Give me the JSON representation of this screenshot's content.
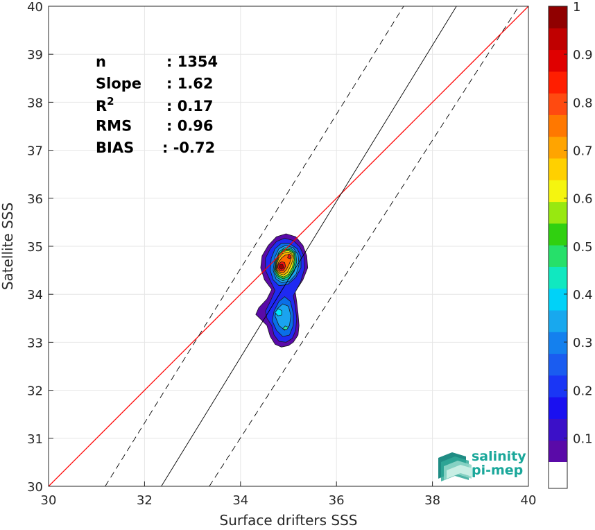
{
  "chart_data": {
    "type": "scatter",
    "subtype": "density-contour",
    "xlabel": "Surface drifters SSS",
    "ylabel": "Satellite SSS",
    "xlim": [
      30,
      40
    ],
    "ylim": [
      30,
      40
    ],
    "xticks": [
      30,
      32,
      34,
      36,
      38,
      40
    ],
    "yticks": [
      30,
      31,
      32,
      33,
      34,
      35,
      36,
      37,
      38,
      39,
      40
    ],
    "grid": true,
    "stats": [
      {
        "label": "n",
        "sep": ":",
        "value": "1354"
      },
      {
        "label": "Slope",
        "sep": ":",
        "value": "1.62"
      },
      {
        "label": "R",
        "sup": "2",
        "sep": ":",
        "value": "0.17"
      },
      {
        "label": "RMS",
        "sep": ":",
        "value": "0.96"
      },
      {
        "label": "BIAS",
        "sep": ":",
        "value": "-0.72"
      }
    ],
    "reference_lines": [
      {
        "kind": "one-to-one",
        "color": "#ff0000",
        "points": [
          [
            30,
            30
          ],
          [
            40,
            40
          ]
        ]
      },
      {
        "kind": "fit",
        "color": "#000000",
        "dash": "solid",
        "points": [
          [
            32.35,
            30
          ],
          [
            38.5,
            40
          ]
        ]
      },
      {
        "kind": "fit-upper",
        "color": "#000000",
        "dash": "dashed",
        "points": [
          [
            31.18,
            30
          ],
          [
            37.4,
            40
          ]
        ]
      },
      {
        "kind": "fit-lower",
        "color": "#000000",
        "dash": "dashed",
        "points": [
          [
            33.35,
            30
          ],
          [
            39.8,
            40
          ]
        ]
      }
    ],
    "density_contours": [
      {
        "level": 0.05,
        "color": "#5a0aa8",
        "points": [
          [
            34.42,
            33.48
          ],
          [
            34.55,
            33.35
          ],
          [
            34.62,
            33.12
          ],
          [
            34.72,
            32.96
          ],
          [
            34.85,
            32.9
          ],
          [
            35.0,
            32.93
          ],
          [
            35.1,
            33.0
          ],
          [
            35.2,
            33.15
          ],
          [
            35.22,
            33.35
          ],
          [
            35.2,
            33.6
          ],
          [
            35.17,
            33.85
          ],
          [
            35.14,
            34.05
          ],
          [
            35.3,
            34.3
          ],
          [
            35.4,
            34.55
          ],
          [
            35.38,
            34.8
          ],
          [
            35.3,
            35.02
          ],
          [
            35.15,
            35.2
          ],
          [
            34.95,
            35.26
          ],
          [
            34.75,
            35.2
          ],
          [
            34.58,
            35.02
          ],
          [
            34.45,
            34.8
          ],
          [
            34.42,
            34.55
          ],
          [
            34.5,
            34.3
          ],
          [
            34.65,
            34.1
          ],
          [
            34.55,
            33.9
          ],
          [
            34.38,
            33.72
          ],
          [
            34.32,
            33.58
          ]
        ]
      },
      {
        "level": 0.15,
        "color": "#1f2af2",
        "points": [
          [
            34.55,
            33.5
          ],
          [
            34.65,
            33.35
          ],
          [
            34.7,
            33.15
          ],
          [
            34.8,
            33.02
          ],
          [
            34.95,
            33.0
          ],
          [
            35.08,
            33.08
          ],
          [
            35.15,
            33.25
          ],
          [
            35.17,
            33.5
          ],
          [
            35.14,
            33.75
          ],
          [
            35.1,
            33.97
          ],
          [
            35.25,
            34.25
          ],
          [
            35.34,
            34.55
          ],
          [
            35.32,
            34.8
          ],
          [
            35.24,
            34.98
          ],
          [
            35.1,
            35.12
          ],
          [
            34.92,
            35.17
          ],
          [
            34.75,
            35.1
          ],
          [
            34.62,
            34.95
          ],
          [
            34.52,
            34.75
          ],
          [
            34.52,
            34.5
          ],
          [
            34.62,
            34.28
          ],
          [
            34.72,
            34.08
          ],
          [
            34.62,
            33.85
          ],
          [
            34.52,
            33.65
          ]
        ]
      },
      {
        "level": 0.25,
        "color": "#0a6fe8",
        "points": [
          [
            34.66,
            33.45
          ],
          [
            34.75,
            33.25
          ],
          [
            34.88,
            33.12
          ],
          [
            35.02,
            33.15
          ],
          [
            35.1,
            33.35
          ],
          [
            35.1,
            33.6
          ],
          [
            35.04,
            33.85
          ],
          [
            34.92,
            33.95
          ],
          [
            34.8,
            33.85
          ],
          [
            34.7,
            33.65
          ]
        ]
      },
      {
        "level": 0.25,
        "color": "#0a6fe8",
        "points": [
          [
            34.62,
            34.5
          ],
          [
            34.68,
            34.3
          ],
          [
            34.8,
            34.18
          ],
          [
            34.98,
            34.2
          ],
          [
            35.15,
            34.35
          ],
          [
            35.26,
            34.55
          ],
          [
            35.26,
            34.78
          ],
          [
            35.18,
            34.95
          ],
          [
            35.02,
            35.06
          ],
          [
            34.85,
            35.06
          ],
          [
            34.72,
            34.95
          ],
          [
            34.64,
            34.75
          ]
        ]
      },
      {
        "level": 0.35,
        "color": "#1aa3f0",
        "points": [
          [
            34.72,
            33.55
          ],
          [
            34.8,
            33.35
          ],
          [
            34.92,
            33.25
          ],
          [
            35.02,
            33.35
          ],
          [
            35.05,
            33.55
          ],
          [
            35.0,
            33.75
          ],
          [
            34.88,
            33.8
          ],
          [
            34.77,
            33.7
          ]
        ]
      },
      {
        "level": 0.42,
        "color": "#00e5ff",
        "points": [
          [
            34.72,
            33.62
          ],
          [
            34.78,
            33.55
          ],
          [
            34.86,
            33.57
          ],
          [
            34.86,
            33.66
          ],
          [
            34.78,
            33.7
          ]
        ]
      },
      {
        "level": 0.45,
        "color": "#29e8a8",
        "points": [
          [
            34.88,
            33.28
          ],
          [
            34.96,
            33.26
          ],
          [
            35.0,
            33.31
          ],
          [
            34.93,
            33.34
          ]
        ]
      },
      {
        "level": 0.35,
        "color": "#1aa3f0",
        "points": [
          [
            34.68,
            34.5
          ],
          [
            34.74,
            34.32
          ],
          [
            34.86,
            34.24
          ],
          [
            35.02,
            34.27
          ],
          [
            35.16,
            34.42
          ],
          [
            35.22,
            34.62
          ],
          [
            35.2,
            34.82
          ],
          [
            35.1,
            34.97
          ],
          [
            34.94,
            35.02
          ],
          [
            34.8,
            34.95
          ],
          [
            34.72,
            34.78
          ]
        ]
      },
      {
        "level": 0.45,
        "color": "#00d8a0",
        "points": [
          [
            34.7,
            34.5
          ],
          [
            34.76,
            34.35
          ],
          [
            34.88,
            34.28
          ],
          [
            35.02,
            34.33
          ],
          [
            35.12,
            34.48
          ],
          [
            35.17,
            34.68
          ],
          [
            35.15,
            34.86
          ],
          [
            35.05,
            34.96
          ],
          [
            34.92,
            34.97
          ],
          [
            34.8,
            34.88
          ],
          [
            34.73,
            34.7
          ]
        ]
      },
      {
        "level": 0.55,
        "color": "#3fd030",
        "points": [
          [
            34.72,
            34.5
          ],
          [
            34.78,
            34.38
          ],
          [
            34.89,
            34.32
          ],
          [
            35.0,
            34.37
          ],
          [
            35.1,
            34.52
          ],
          [
            35.14,
            34.7
          ],
          [
            35.12,
            34.86
          ],
          [
            35.02,
            34.94
          ],
          [
            34.9,
            34.93
          ],
          [
            34.8,
            34.84
          ],
          [
            34.74,
            34.68
          ]
        ]
      },
      {
        "level": 0.6,
        "color": "#f5f50f",
        "points": [
          [
            34.73,
            34.52
          ],
          [
            34.8,
            34.4
          ],
          [
            34.9,
            34.36
          ],
          [
            35.0,
            34.42
          ],
          [
            35.08,
            34.56
          ],
          [
            35.12,
            34.72
          ],
          [
            35.1,
            34.85
          ],
          [
            35.0,
            34.91
          ],
          [
            34.88,
            34.89
          ],
          [
            34.8,
            34.8
          ],
          [
            34.75,
            34.66
          ]
        ]
      },
      {
        "level": 0.7,
        "color": "#ffb000",
        "points": [
          [
            34.74,
            34.52
          ],
          [
            34.81,
            34.43
          ],
          [
            34.9,
            34.4
          ],
          [
            34.98,
            34.46
          ],
          [
            35.05,
            34.6
          ],
          [
            35.1,
            34.74
          ],
          [
            35.07,
            34.84
          ],
          [
            34.98,
            34.88
          ],
          [
            34.88,
            34.85
          ],
          [
            34.8,
            34.76
          ],
          [
            34.76,
            34.64
          ]
        ]
      },
      {
        "level": 0.8,
        "color": "#ff6a00",
        "points": [
          [
            34.75,
            34.53
          ],
          [
            34.82,
            34.46
          ],
          [
            34.9,
            34.45
          ],
          [
            34.96,
            34.52
          ],
          [
            35.02,
            34.64
          ],
          [
            35.06,
            34.76
          ],
          [
            35.02,
            34.83
          ],
          [
            34.94,
            34.82
          ],
          [
            34.86,
            34.76
          ],
          [
            34.79,
            34.66
          ]
        ]
      },
      {
        "level": 0.9,
        "color": "#f01010",
        "points": [
          [
            34.77,
            34.55
          ],
          [
            34.83,
            34.49
          ],
          [
            34.9,
            34.5
          ],
          [
            34.94,
            34.58
          ],
          [
            34.92,
            34.66
          ],
          [
            34.86,
            34.68
          ],
          [
            34.79,
            34.63
          ]
        ]
      },
      {
        "level": 0.9,
        "color": "#f01010",
        "points": [
          [
            34.98,
            34.76
          ],
          [
            35.03,
            34.74
          ],
          [
            35.06,
            34.8
          ],
          [
            35.01,
            34.84
          ]
        ]
      },
      {
        "level": 1.0,
        "color": "#a00000",
        "points": [
          [
            34.8,
            34.56
          ],
          [
            34.85,
            34.52
          ],
          [
            34.9,
            34.55
          ],
          [
            34.88,
            34.62
          ],
          [
            34.82,
            34.62
          ]
        ]
      }
    ],
    "colorbar": {
      "min": 0.05,
      "max": 1.0,
      "tick_labels": [
        "0.1",
        "0.2",
        "0.3",
        "0.4",
        "0.5",
        "0.6",
        "0.7",
        "0.8",
        "0.9",
        "1"
      ],
      "tick_values": [
        0.1,
        0.2,
        0.3,
        0.4,
        0.5,
        0.6,
        0.7,
        0.8,
        0.9,
        1.0
      ],
      "colors": [
        "#5a0aa8",
        "#3b10c8",
        "#1a10f0",
        "#1a36f5",
        "#1a5cf0",
        "#1480ee",
        "#18a8ee",
        "#00d2f8",
        "#10e8c0",
        "#26e06a",
        "#30d010",
        "#98e810",
        "#f5f50f",
        "#ffd000",
        "#ffa400",
        "#ff7800",
        "#ff4a10",
        "#ff1e00",
        "#e00000",
        "#c00000",
        "#900000"
      ]
    },
    "logo": {
      "line1": "salinity",
      "line2": "pi-mep",
      "color": "#1aa79a"
    }
  }
}
